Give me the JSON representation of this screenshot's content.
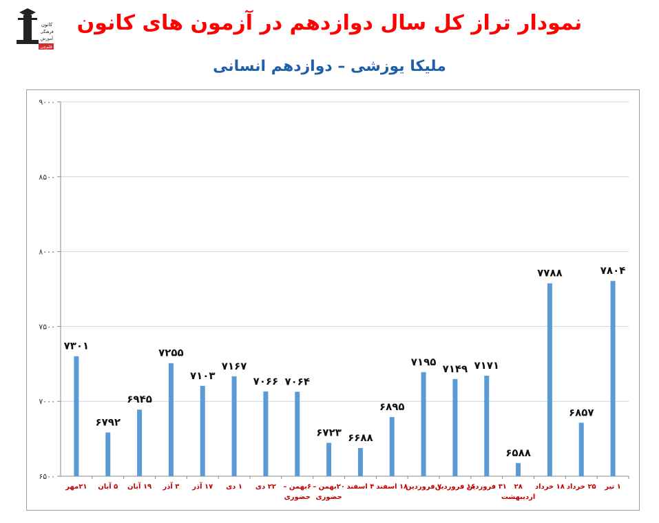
{
  "header": {
    "title": "نمودار تراز کل سال دوازدهم در آزمون های کانون",
    "title_color": "#ff0000",
    "subtitle": "ملیکا یوزشی – دوازدهم انسانی",
    "subtitle_color": "#1f5fa8"
  },
  "logo": {
    "icon": "graduate-statue-icon",
    "lines": [
      "کانون",
      "فرهنگی",
      "آموزش"
    ],
    "badge": "قلم‌چی",
    "badge_color": "#d32f2f"
  },
  "chart_data": {
    "type": "bar",
    "title": "",
    "xlabel": "",
    "ylabel": "",
    "ylim": [
      6500,
      9000
    ],
    "y_ticks": [
      6500,
      7000,
      7500,
      8000,
      8500,
      9000
    ],
    "y_tick_labels": [
      "۶۵۰۰",
      "۷۰۰۰",
      "۷۵۰۰",
      "۸۰۰۰",
      "۸۵۰۰",
      "۹۰۰۰"
    ],
    "grid": true,
    "legend": "none",
    "bar_color": "#5b9bd5",
    "categories": [
      [
        "۲۱مهر"
      ],
      [
        "۵ آبان"
      ],
      [
        "۱۹ آبان"
      ],
      [
        "۳ آذر"
      ],
      [
        "۱۷ آذر"
      ],
      [
        "۱ دی"
      ],
      [
        "۲۲ دی"
      ],
      [
        "۶بهمن –",
        "حضوری"
      ],
      [
        "۲۰بهمن –",
        "حضوری"
      ],
      [
        "۴ اسفند"
      ],
      [
        "۱۸ اسفند"
      ],
      [
        "۷ فروردین"
      ],
      [
        "۱۶ فروردین"
      ],
      [
        "۳۱ فروردین"
      ],
      [
        "۲۸",
        "اردیبهشت"
      ],
      [
        "۱۸ خرداد"
      ],
      [
        "۲۵ خرداد"
      ],
      [
        "۱ تیر"
      ]
    ],
    "values": [
      7301,
      6792,
      6945,
      7255,
      7103,
      7167,
      7066,
      7064,
      6723,
      6688,
      6895,
      7195,
      7149,
      7171,
      6588,
      7788,
      6857,
      7804
    ],
    "value_labels": [
      "۷۳۰۱",
      "۶۷۹۲",
      "۶۹۴۵",
      "۷۲۵۵",
      "۷۱۰۳",
      "۷۱۶۷",
      "۷۰۶۶",
      "۷۰۶۴",
      "۶۷۲۳",
      "۶۶۸۸",
      "۶۸۹۵",
      "۷۱۹۵",
      "۷۱۴۹",
      "۷۱۷۱",
      "۶۵۸۸",
      "۷۷۸۸",
      "۶۸۵۷",
      "۷۸۰۴"
    ]
  }
}
